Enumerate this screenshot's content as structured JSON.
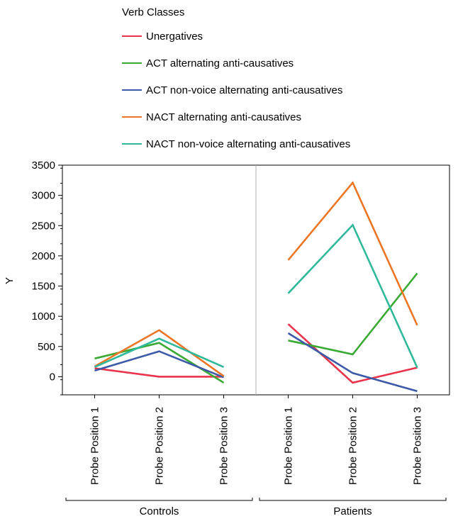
{
  "chart_data": {
    "type": "line",
    "ylabel": "Y",
    "ylim": [
      -300,
      3500
    ],
    "yticks": [
      0,
      500,
      1000,
      1500,
      2000,
      2500,
      3000,
      3500
    ],
    "legend": {
      "title": "Verb Classes",
      "placement": "top"
    },
    "categories": [
      "Probe Position 1",
      "Probe Position 2",
      "Probe Position 3"
    ],
    "groups": [
      {
        "name": "Controls",
        "series": [
          {
            "name": "Unergatives",
            "color": "#e8334a",
            "values": [
              140,
              0,
              0
            ]
          },
          {
            "name": "ACT alternating anti-causatives",
            "color": "#3aaa35",
            "values": [
              300,
              560,
              -100
            ]
          },
          {
            "name": "ACT non-voice alternating anti-causatives",
            "color": "#3d5aa8",
            "values": [
              100,
              420,
              -10
            ]
          },
          {
            "name": "NACT alternating anti-causatives",
            "color": "#ec7625",
            "values": [
              170,
              770,
              10
            ]
          },
          {
            "name": "NACT non-voice alternating anti-causatives",
            "color": "#2fb99a",
            "values": [
              160,
              630,
              160
            ]
          }
        ]
      },
      {
        "name": "Patients",
        "series": [
          {
            "name": "Unergatives",
            "color": "#e8334a",
            "values": [
              870,
              -100,
              150
            ]
          },
          {
            "name": "ACT alternating anti-causatives",
            "color": "#3aaa35",
            "values": [
              600,
              370,
              1710
            ]
          },
          {
            "name": "ACT non-voice alternating anti-causatives",
            "color": "#3d5aa8",
            "values": [
              720,
              60,
              -240
            ]
          },
          {
            "name": "NACT alternating anti-causatives",
            "color": "#ec7625",
            "values": [
              1930,
              3210,
              850
            ]
          },
          {
            "name": "NACT non-voice alternating anti-causatives",
            "color": "#2fb99a",
            "values": [
              1380,
              2510,
              150
            ]
          }
        ]
      }
    ]
  }
}
